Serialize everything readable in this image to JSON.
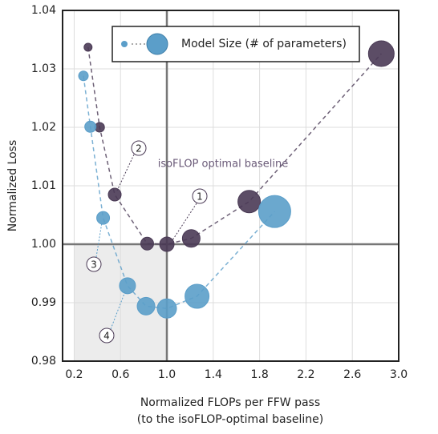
{
  "chart_data": {
    "type": "scatter",
    "ylabel": "Normalized Loss",
    "xlabel": [
      "Normalized FLOPs per FFW pass",
      "(to the isoFLOP-optimal baseline)"
    ],
    "legend_label": "Model Size (# of parameters)",
    "annotations": [
      "isoFLOP optimal baseline",
      "1",
      "2",
      "3",
      "4"
    ],
    "xlim": [
      0.1,
      3.0
    ],
    "ylim": [
      0.98,
      1.04
    ],
    "xticks": [
      0.2,
      0.6,
      {
        "value": 1.0,
        "label": "1.0"
      },
      1.4,
      1.8,
      2.2,
      2.6,
      {
        "value": 3.0,
        "label": "3.0"
      }
    ],
    "yticks": [
      0.98,
      0.99,
      {
        "value": 1.0,
        "label": "1.00"
      },
      1.01,
      1.02,
      1.03,
      1.04
    ],
    "grid": true,
    "series": [
      {
        "color": "#4a3a55",
        "x": [
          0.32,
          0.42,
          0.55,
          0.83,
          1.0,
          1.21,
          1.71,
          2.85
        ],
        "values": [
          1.0337,
          1.02,
          1.0085,
          1.0001,
          1.0,
          1.001,
          1.0073,
          1.0326
        ],
        "sizes": [
          5,
          6,
          8,
          8,
          9,
          11,
          14,
          16
        ]
      },
      {
        "color": "#5b9ec9",
        "x": [
          0.28,
          0.34,
          0.45,
          0.66,
          0.82,
          1.0,
          1.26,
          1.93
        ],
        "values": [
          1.0288,
          1.0201,
          1.0045,
          0.9929,
          0.9894,
          0.989,
          0.9911,
          1.0056
        ],
        "sizes": [
          6,
          7,
          8,
          10,
          11,
          12,
          15,
          20
        ]
      }
    ]
  }
}
